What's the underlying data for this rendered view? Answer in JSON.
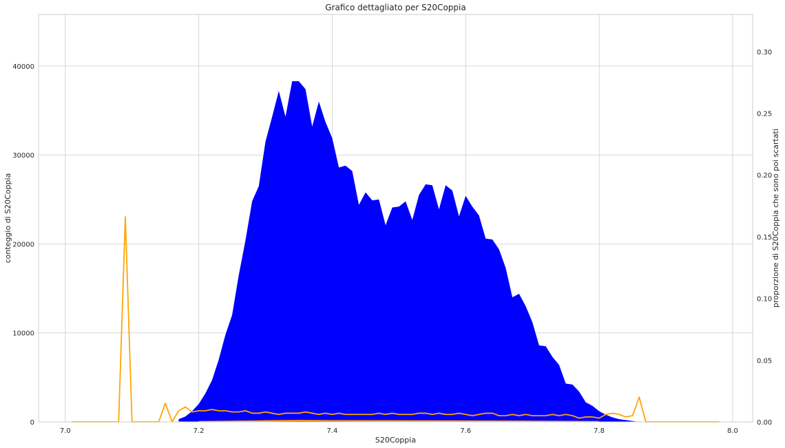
{
  "chart_data": {
    "type": "area",
    "title": "Grafico dettagliato per S20Coppia",
    "xlabel": "S20Coppia",
    "ylabel": "conteggio di S20Coppia",
    "y2label": "proporzione di S20Coppia che sono poi scartati",
    "xlim": [
      6.96,
      8.03
    ],
    "ylim": [
      0,
      45800
    ],
    "y2lim": [
      0,
      0.33
    ],
    "xticks": [
      7.0,
      7.2,
      7.4,
      7.6,
      7.8,
      8.0
    ],
    "xtick_labels": [
      "7.0",
      "7.2",
      "7.4",
      "7.6",
      "7.8",
      "8.0"
    ],
    "yticks": [
      0,
      10000,
      20000,
      30000,
      40000
    ],
    "ytick_labels": [
      "0",
      "10000",
      "20000",
      "30000",
      "40000"
    ],
    "y2ticks": [
      0.0,
      0.05,
      0.1,
      0.15,
      0.2,
      0.25,
      0.3
    ],
    "y2tick_labels": [
      "0.00",
      "0.05",
      "0.10",
      "0.15",
      "0.20",
      "0.25",
      "0.30"
    ],
    "grid": true,
    "series": [
      {
        "axis": "left",
        "kind": "area",
        "color": "#0000ff",
        "x": [
          7.17,
          7.18,
          7.19,
          7.2,
          7.21,
          7.22,
          7.23,
          7.24,
          7.25,
          7.26,
          7.27,
          7.28,
          7.29,
          7.3,
          7.31,
          7.32,
          7.33,
          7.34,
          7.35,
          7.36,
          7.37,
          7.38,
          7.39,
          7.4,
          7.41,
          7.42,
          7.43,
          7.44,
          7.45,
          7.46,
          7.47,
          7.48,
          7.49,
          7.5,
          7.51,
          7.52,
          7.53,
          7.54,
          7.55,
          7.56,
          7.57,
          7.58,
          7.59,
          7.6,
          7.61,
          7.62,
          7.63,
          7.64,
          7.65,
          7.66,
          7.67,
          7.68,
          7.69,
          7.7,
          7.71,
          7.72,
          7.73,
          7.74,
          7.75,
          7.76,
          7.77,
          7.78,
          7.79,
          7.8,
          7.81,
          7.82,
          7.83,
          7.84,
          7.85,
          7.86
        ],
        "values": [
          300,
          600,
          1200,
          2000,
          3200,
          4700,
          7000,
          9800,
          12000,
          16500,
          20400,
          24800,
          26500,
          31500,
          34300,
          37200,
          34300,
          38300,
          38300,
          37400,
          33200,
          36000,
          33700,
          31900,
          28600,
          28800,
          28200,
          24400,
          25800,
          24900,
          25000,
          22100,
          24100,
          24200,
          24800,
          22700,
          25500,
          26700,
          26600,
          23900,
          26600,
          26000,
          23100,
          25400,
          24200,
          23200,
          20600,
          20500,
          19400,
          17300,
          14000,
          14400,
          13000,
          11200,
          8600,
          8500,
          7300,
          6400,
          4300,
          4200,
          3400,
          2200,
          1800,
          1200,
          800,
          500,
          300,
          200,
          100,
          0
        ]
      },
      {
        "axis": "left",
        "kind": "area",
        "color": "#ff0000",
        "x": [
          7.25,
          7.3,
          7.35,
          7.4,
          7.45,
          7.5,
          7.55,
          7.6,
          7.65,
          7.7,
          7.75,
          7.8
        ],
        "values": [
          60,
          180,
          220,
          180,
          150,
          140,
          150,
          140,
          110,
          80,
          50,
          20
        ]
      },
      {
        "axis": "right",
        "kind": "line",
        "color": "#ffa500",
        "x": [
          7.01,
          7.02,
          7.03,
          7.04,
          7.05,
          7.06,
          7.07,
          7.08,
          7.09,
          7.1,
          7.11,
          7.12,
          7.13,
          7.14,
          7.15,
          7.16,
          7.17,
          7.18,
          7.19,
          7.2,
          7.21,
          7.22,
          7.23,
          7.24,
          7.25,
          7.26,
          7.27,
          7.28,
          7.29,
          7.3,
          7.31,
          7.32,
          7.33,
          7.34,
          7.35,
          7.36,
          7.37,
          7.38,
          7.39,
          7.4,
          7.41,
          7.42,
          7.43,
          7.44,
          7.45,
          7.46,
          7.47,
          7.48,
          7.49,
          7.5,
          7.51,
          7.52,
          7.53,
          7.54,
          7.55,
          7.56,
          7.57,
          7.58,
          7.59,
          7.6,
          7.61,
          7.62,
          7.63,
          7.64,
          7.65,
          7.66,
          7.67,
          7.68,
          7.69,
          7.7,
          7.71,
          7.72,
          7.73,
          7.74,
          7.75,
          7.76,
          7.77,
          7.78,
          7.79,
          7.8,
          7.81,
          7.82,
          7.83,
          7.84,
          7.85,
          7.86,
          7.87,
          7.88,
          7.89,
          7.9,
          7.91,
          7.92,
          7.93,
          7.94,
          7.95,
          7.96,
          7.97,
          7.98
        ],
        "values": [
          0,
          0,
          0,
          0,
          0,
          0,
          0,
          0,
          0.166,
          0,
          0,
          0,
          0,
          0,
          0.015,
          0,
          0.009,
          0.012,
          0.008,
          0.009,
          0.009,
          0.01,
          0.009,
          0.009,
          0.008,
          0.008,
          0.009,
          0.007,
          0.007,
          0.008,
          0.007,
          0.006,
          0.007,
          0.007,
          0.007,
          0.008,
          0.007,
          0.006,
          0.007,
          0.006,
          0.007,
          0.006,
          0.006,
          0.006,
          0.006,
          0.006,
          0.007,
          0.006,
          0.007,
          0.006,
          0.006,
          0.006,
          0.007,
          0.007,
          0.006,
          0.007,
          0.006,
          0.006,
          0.007,
          0.006,
          0.005,
          0.006,
          0.007,
          0.007,
          0.005,
          0.005,
          0.006,
          0.005,
          0.006,
          0.005,
          0.005,
          0.005,
          0.006,
          0.005,
          0.006,
          0.005,
          0.003,
          0.004,
          0.004,
          0.003,
          0.006,
          0.007,
          0.006,
          0.004,
          0.005,
          0.02,
          0,
          0,
          0,
          0,
          0,
          0,
          0,
          0,
          0,
          0,
          0,
          0
        ]
      },
      {
        "axis": "right",
        "kind": "line",
        "color": "#ffa500",
        "x": [
          7.2,
          7.3,
          7.35,
          7.4,
          7.5,
          7.6,
          7.7,
          7.8
        ],
        "values": [
          0.0002,
          0.0008,
          0.001,
          0.0009,
          0.0008,
          0.0007,
          0.0005,
          0.0002
        ]
      }
    ]
  }
}
